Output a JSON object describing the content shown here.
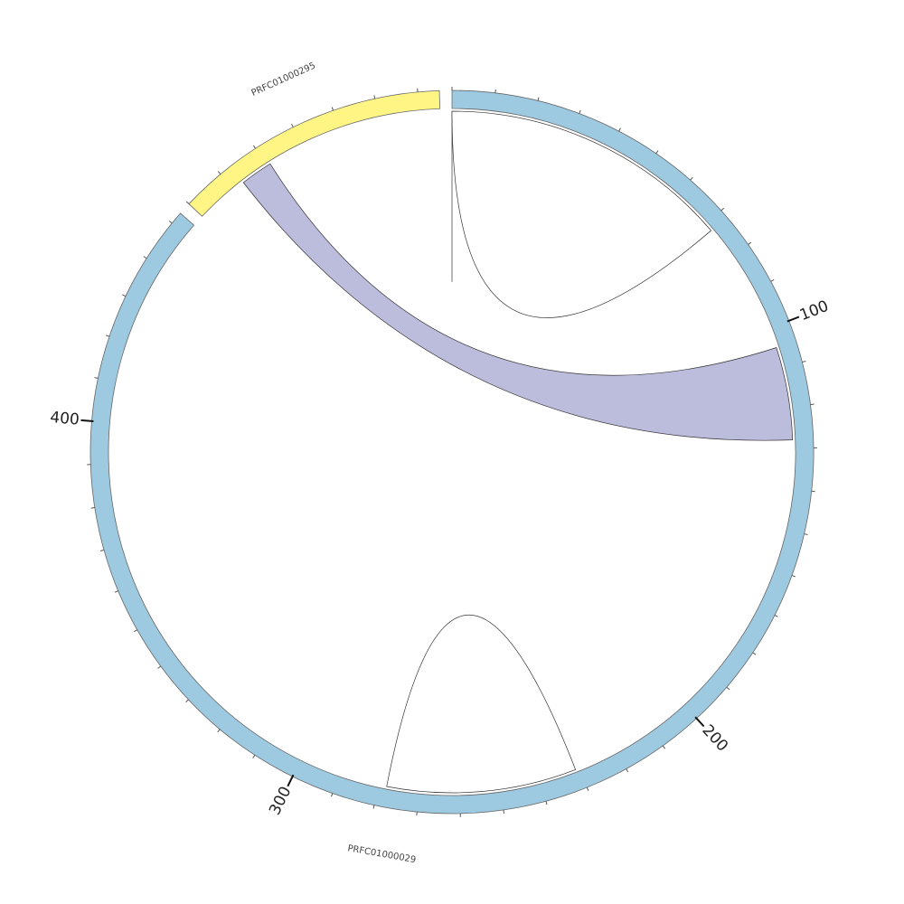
{
  "segments": [
    {
      "name": "PRFC01000029",
      "length": 453,
      "color": "#9ecae1",
      "major_ticks": [
        {
          "pos": 100,
          "label": "100"
        },
        {
          "pos": 200,
          "label": "200"
        },
        {
          "pos": 300,
          "label": "300"
        },
        {
          "pos": 400,
          "label": "400"
        }
      ],
      "minor_tick_interval": 10
    },
    {
      "name": "PRFC01000295",
      "length": 65,
      "color": "#fff584",
      "major_ticks": [],
      "minor_tick_interval": 10
    }
  ],
  "links": [
    {
      "from": {
        "segment": "PRFC01000029",
        "start": 0,
        "end": 0
      },
      "to": {
        "segment": "PRFC01000029",
        "start": 0,
        "end": 0
      },
      "color": "#ffffff"
    },
    {
      "from": {
        "segment": "PRFC01000029",
        "start": 0,
        "end": 72
      },
      "to": {
        "segment": "PRFC01000029",
        "start": 0,
        "end": 72
      },
      "color": "#ffffff"
    },
    {
      "from": {
        "segment": "PRFC01000029",
        "start": 105,
        "end": 128
      },
      "to": {
        "segment": "PRFC01000295",
        "start": 13,
        "end": 21
      },
      "color": "#bcbddc"
    },
    {
      "from": {
        "segment": "PRFC01000029",
        "start": 231,
        "end": 278
      },
      "to": {
        "segment": "PRFC01000029",
        "start": 231,
        "end": 278
      },
      "color": "#ffffff"
    }
  ]
}
